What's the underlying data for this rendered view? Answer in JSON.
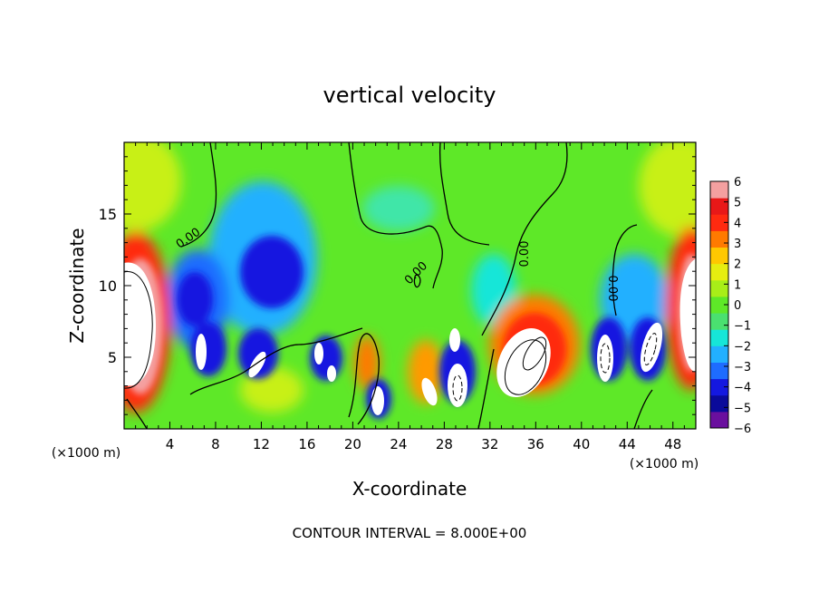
{
  "chart_data": {
    "type": "heatmap",
    "title": "vertical velocity",
    "xlabel": "X-coordinate",
    "ylabel": "Z-coordinate",
    "x_unit_label": "(×1000 m)",
    "footer": "CONTOUR INTERVAL = 8.000E+00",
    "xlim": [
      0,
      50
    ],
    "ylim": [
      0,
      20
    ],
    "x_ticks": [
      4,
      8,
      12,
      16,
      20,
      24,
      28,
      32,
      36,
      40,
      44,
      48
    ],
    "y_ticks": [
      5,
      10,
      15
    ],
    "contour_label": "0.00",
    "contour_interval": 8.0,
    "colorbar": {
      "min": -6,
      "max": 6,
      "ticks": [
        6,
        5,
        4,
        3,
        2,
        1,
        0,
        -1,
        -2,
        -3,
        -4,
        -5,
        -6
      ],
      "colors": [
        "#6a0f9e",
        "#0a0a9a",
        "#1418e0",
        "#1e6cff",
        "#22b0ff",
        "#16e6d8",
        "#4ae070",
        "#5ee828",
        "#a8ee18",
        "#e6ee10",
        "#ffc800",
        "#ff7a00",
        "#ff2a10",
        "#e81818",
        "#f4a0a0"
      ]
    },
    "features": [
      {
        "x": 1.0,
        "z": 7.0,
        "kind": "updraft-core"
      },
      {
        "x": 6.5,
        "z": 5.5,
        "kind": "updraft-core"
      },
      {
        "x": 10.0,
        "z": 10.0,
        "kind": "downdraft-region"
      },
      {
        "x": 12.0,
        "z": 4.5,
        "kind": "updraft-core"
      },
      {
        "x": 14.5,
        "z": 10.0,
        "kind": "downdraft-region"
      },
      {
        "x": 17.0,
        "z": 4.5,
        "kind": "updraft-core"
      },
      {
        "x": 22.0,
        "z": 2.0,
        "kind": "updraft-core"
      },
      {
        "x": 26.5,
        "z": 3.0,
        "kind": "updraft-core"
      },
      {
        "x": 29.5,
        "z": 3.5,
        "kind": "updraft-core"
      },
      {
        "x": 35.5,
        "z": 4.5,
        "kind": "updraft-core"
      },
      {
        "x": 42.5,
        "z": 5.0,
        "kind": "updraft-core"
      },
      {
        "x": 46.0,
        "z": 5.0,
        "kind": "updraft-core"
      },
      {
        "x": 49.3,
        "z": 8.0,
        "kind": "updraft-core"
      }
    ]
  }
}
